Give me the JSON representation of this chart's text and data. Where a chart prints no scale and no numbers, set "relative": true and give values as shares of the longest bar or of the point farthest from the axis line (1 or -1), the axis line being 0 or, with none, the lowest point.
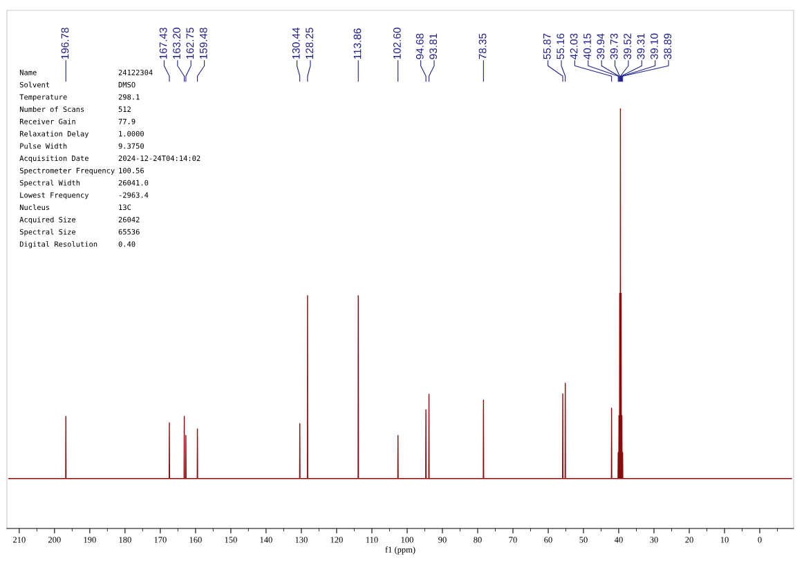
{
  "chart_data": {
    "type": "line",
    "relative": true,
    "xlabel": "f1 (ppm)",
    "xlim": [
      213.5,
      -9.6
    ],
    "xticks": [
      210,
      200,
      190,
      180,
      170,
      160,
      150,
      140,
      130,
      120,
      110,
      100,
      90,
      80,
      70,
      60,
      50,
      40,
      30,
      20,
      10,
      0
    ],
    "grid": false,
    "tick_labels": "x",
    "marker": "none",
    "line_style": "solid",
    "series": [
      {
        "color": "#8b0a0a",
        "x": [
          213,
          196.84,
          196.78,
          196.72,
          167.49,
          167.43,
          167.37,
          163.26,
          163.2,
          163.14,
          162.81,
          162.75,
          162.69,
          159.54,
          159.48,
          159.42,
          130.5,
          130.44,
          130.38,
          128.31,
          128.25,
          128.19,
          113.92,
          113.86,
          113.8,
          102.66,
          102.6,
          102.54,
          94.74,
          94.68,
          94.62,
          93.87,
          93.81,
          93.75,
          78.41,
          78.35,
          78.29,
          55.93,
          55.87,
          55.81,
          55.22,
          55.16,
          55.1,
          42.09,
          42.03,
          41.97,
          40.21,
          40.15,
          40.09,
          40.0,
          39.94,
          39.88,
          39.79,
          39.73,
          39.67,
          39.58,
          39.52,
          39.46,
          39.37,
          39.31,
          39.25,
          39.16,
          39.1,
          39.04,
          38.95,
          38.89,
          38.83,
          -9
        ],
        "values": [
          0.119,
          0.119,
          0.267,
          0.119,
          0.119,
          0.252,
          0.119,
          0.119,
          0.267,
          0.119,
          0.119,
          0.222,
          0.119,
          0.119,
          0.237,
          0.119,
          0.119,
          0.25,
          0.119,
          0.119,
          0.555,
          0.119,
          0.119,
          0.555,
          0.119,
          0.119,
          0.222,
          0.119,
          0.119,
          0.283,
          0.119,
          0.119,
          0.32,
          0.119,
          0.119,
          0.306,
          0.119,
          0.119,
          0.321,
          0.119,
          0.119,
          0.346,
          0.119,
          0.119,
          0.287,
          0.119,
          0.119,
          0.181,
          0.119,
          0.119,
          0.269,
          0.119,
          0.119,
          0.56,
          0.119,
          0.119,
          1.0,
          0.119,
          0.119,
          0.56,
          0.119,
          0.119,
          0.269,
          0.119,
          0.119,
          0.181,
          0.119,
          0.119
        ]
      }
    ],
    "annotations": [
      {
        "text": "196.78",
        "x": 196.78
      },
      {
        "text": "167.43",
        "x": 167.43
      },
      {
        "text": "163.20",
        "x": 163.2
      },
      {
        "text": "162.75",
        "x": 162.75
      },
      {
        "text": "159.48",
        "x": 159.48
      },
      {
        "text": "130.44",
        "x": 130.44
      },
      {
        "text": "128.25",
        "x": 128.25
      },
      {
        "text": "113.86",
        "x": 113.86
      },
      {
        "text": "102.60",
        "x": 102.6
      },
      {
        "text": "94.68",
        "x": 94.68
      },
      {
        "text": "93.81",
        "x": 93.81
      },
      {
        "text": "78.35",
        "x": 78.35
      },
      {
        "text": "55.87",
        "x": 55.87
      },
      {
        "text": "55.16",
        "x": 55.16
      },
      {
        "text": "42.03",
        "x": 42.03
      },
      {
        "text": "40.15",
        "x": 40.15
      },
      {
        "text": "39.94",
        "x": 39.94
      },
      {
        "text": "39.73",
        "x": 39.73
      },
      {
        "text": "39.52",
        "x": 39.52
      },
      {
        "text": "39.31",
        "x": 39.31
      },
      {
        "text": "39.10",
        "x": 39.1
      },
      {
        "text": "38.89",
        "x": 38.89
      },
      "Name",
      "24122304",
      "Solvent",
      "DMSO",
      "Temperature",
      "298.1",
      "Number of Scans",
      "512",
      "Receiver Gain",
      "77.9",
      "Relaxation Delay",
      "1.0000",
      "Pulse Width",
      "9.3750",
      "Acquisition Date",
      "2024-12-24T04:14:02",
      "Spectrometer Frequency",
      "100.56",
      "Spectral Width",
      "26041.0",
      "Lowest Frequency",
      "-2963.4",
      "Nucleus",
      "13C",
      "Acquired Size",
      "26042",
      "Spectral Size",
      "65536",
      "Digital Resolution",
      "0.40"
    ]
  }
}
